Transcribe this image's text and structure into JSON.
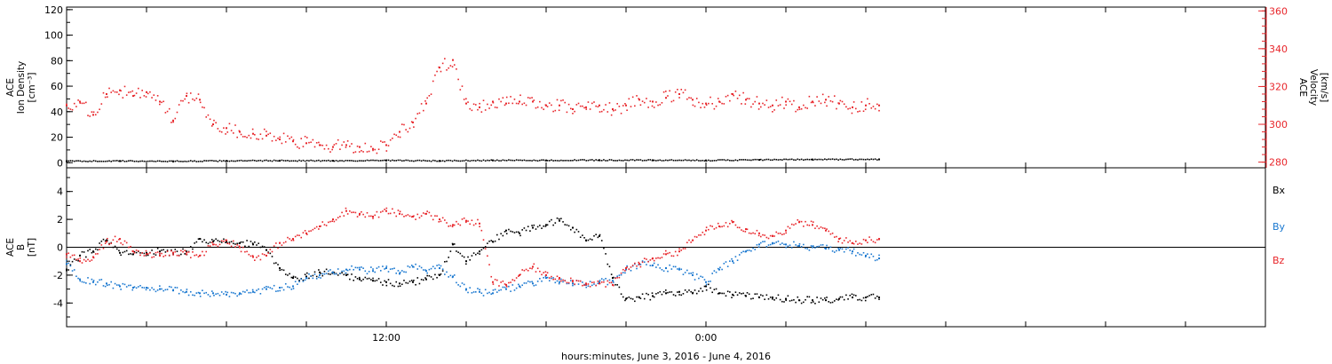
{
  "colors": {
    "black": "#000000",
    "red": "#e8262b",
    "blue": "#1a78d0"
  },
  "footer": {
    "xlabel": "hours:minutes, June  3, 2016 - June  4, 2016"
  },
  "x_axis": {
    "unit": "hours since 2016-06-03 00:00",
    "range": [
      0,
      45
    ],
    "minor_tick_every": 3,
    "tick_labels": [
      {
        "x": 12,
        "label": "12:00"
      },
      {
        "x": 24,
        "label": "0:00"
      }
    ]
  },
  "chart_data": [
    {
      "type": "scatter",
      "panel": "top",
      "ylabel": [
        "ACE",
        "Ion Density",
        "[cm⁻³]"
      ],
      "ylim": [
        -4,
        122
      ],
      "yticks": [
        0,
        20,
        40,
        60,
        80,
        100,
        120
      ],
      "ylabel_right": [
        "ACE",
        "Velocity",
        "[km/s]"
      ],
      "ylim_right": [
        277,
        362
      ],
      "yticks_right": [
        280,
        300,
        320,
        340,
        360
      ],
      "series": [
        {
          "axis": "left",
          "color": "#000000",
          "x": [
            0,
            2,
            4,
            6,
            8,
            10,
            12,
            14,
            16,
            18,
            20,
            22,
            24,
            26,
            28,
            30.5
          ],
          "y": [
            1.2,
            1.3,
            1.1,
            1.4,
            1.6,
            1.5,
            1.7,
            1.4,
            1.8,
            1.8,
            2.0,
            1.9,
            1.8,
            2.2,
            2.5,
            2.6
          ]
        },
        {
          "axis": "right",
          "color": "#e8262b",
          "x": [
            0,
            0.5,
            1,
            1.5,
            2,
            2.5,
            3,
            3.5,
            4,
            4.5,
            5,
            5.5,
            6,
            6.5,
            7,
            7.5,
            8,
            8.5,
            9,
            9.5,
            10,
            10.5,
            11,
            11.5,
            12,
            12.5,
            13,
            13.5,
            14,
            14.5,
            15,
            15.5,
            16,
            16.5,
            17,
            17.5,
            18,
            18.5,
            19,
            19.5,
            20,
            20.5,
            21,
            21.5,
            22,
            22.5,
            23,
            23.5,
            24,
            24.5,
            25,
            25.5,
            26,
            26.5,
            27,
            27.5,
            28,
            28.5,
            29,
            29.5,
            30,
            30.5
          ],
          "y": [
            310,
            312,
            305,
            316,
            318,
            315,
            317,
            312,
            302,
            315,
            313,
            300,
            298,
            296,
            295,
            294,
            292,
            291,
            290,
            289,
            288,
            289,
            288,
            287,
            289,
            296,
            301,
            311,
            330,
            334,
            311,
            309,
            312,
            311,
            312,
            312,
            310,
            310,
            308,
            309,
            310,
            308,
            310,
            313,
            312,
            314,
            316,
            313,
            311,
            312,
            316,
            313,
            311,
            310,
            312,
            309,
            312,
            313,
            311,
            309,
            310,
            310
          ]
        }
      ]
    },
    {
      "type": "scatter",
      "panel": "bottom",
      "ylabel": [
        "ACE",
        "B",
        "[nT]"
      ],
      "ylim": [
        -5.7,
        5.7
      ],
      "yticks": [
        -4,
        -2,
        0,
        2,
        4
      ],
      "hline": 0,
      "series": [
        {
          "name": "Bx",
          "color": "#000000",
          "x": [
            0,
            0.5,
            1,
            1.5,
            2,
            2.5,
            3,
            3.5,
            4,
            4.5,
            5,
            5.5,
            6,
            6.5,
            7,
            7.5,
            8,
            8.5,
            9,
            9.5,
            10,
            10.5,
            11,
            11.5,
            12,
            12.5,
            13,
            13.5,
            14,
            14.5,
            15,
            15.5,
            16,
            16.5,
            17,
            17.5,
            18,
            18.5,
            19,
            19.5,
            20,
            20.5,
            21,
            21.5,
            22,
            22.5,
            23,
            23.5,
            24,
            24.5,
            25,
            25.5,
            26,
            26.5,
            27,
            27.5,
            28,
            28.5,
            29,
            29.5,
            30,
            30.5
          ],
          "y": [
            -1.6,
            -0.6,
            -0.3,
            0.5,
            -0.4,
            -0.5,
            -0.4,
            -0.3,
            -0.4,
            -0.3,
            0.6,
            0.4,
            0.4,
            0.3,
            0.2,
            -0.2,
            -1.5,
            -2.2,
            -2.1,
            -1.8,
            -1.8,
            -2.0,
            -2.3,
            -2.4,
            -2.5,
            -2.6,
            -2.5,
            -2.3,
            -2.0,
            0.2,
            -1.0,
            -0.3,
            0.4,
            1.2,
            1.0,
            1.4,
            1.6,
            1.9,
            1.4,
            0.5,
            0.8,
            -2.2,
            -3.7,
            -3.6,
            -3.5,
            -3.3,
            -3.2,
            -3.3,
            -2.8,
            -3.3,
            -3.4,
            -3.5,
            -3.6,
            -3.6,
            -3.7,
            -3.8,
            -3.8,
            -3.8,
            -3.7,
            -3.6,
            -3.6,
            -3.6
          ]
        },
        {
          "name": "By",
          "color": "#1a78d0",
          "x": [
            0,
            0.5,
            1,
            1.5,
            2,
            2.5,
            3,
            3.5,
            4,
            4.5,
            5,
            5.5,
            6,
            6.5,
            7,
            7.5,
            8,
            8.5,
            9,
            9.5,
            10,
            10.5,
            11,
            11.5,
            12,
            12.5,
            13,
            13.5,
            14,
            14.5,
            15,
            15.5,
            16,
            16.5,
            17,
            17.5,
            18,
            18.5,
            19,
            19.5,
            20,
            20.5,
            21,
            21.5,
            22,
            22.5,
            23,
            23.5,
            24,
            24.5,
            25,
            25.5,
            26,
            26.5,
            27,
            27.5,
            28,
            28.5,
            29,
            29.5,
            30,
            30.5
          ],
          "y": [
            -1.2,
            -2.3,
            -2.5,
            -2.6,
            -2.8,
            -2.9,
            -2.9,
            -3.0,
            -3.1,
            -3.2,
            -3.3,
            -3.3,
            -3.4,
            -3.3,
            -3.2,
            -3.0,
            -2.9,
            -2.8,
            -2.2,
            -2.0,
            -1.8,
            -1.6,
            -1.6,
            -1.7,
            -1.5,
            -1.9,
            -1.4,
            -1.7,
            -1.5,
            -2.1,
            -3.0,
            -3.2,
            -3.3,
            -3.0,
            -2.8,
            -2.6,
            -2.2,
            -2.5,
            -2.6,
            -2.7,
            -2.5,
            -2.4,
            -1.6,
            -1.2,
            -1.3,
            -1.5,
            -1.6,
            -2.0,
            -2.5,
            -1.6,
            -1.0,
            -0.3,
            0.2,
            0.3,
            0.2,
            0.1,
            0.0,
            -0.1,
            -0.2,
            -0.3,
            -0.6,
            -0.8
          ]
        },
        {
          "name": "Bz",
          "color": "#e8262b",
          "x": [
            0,
            0.5,
            1,
            1.5,
            2,
            2.5,
            3,
            3.5,
            4,
            4.5,
            5,
            5.5,
            6,
            6.5,
            7,
            7.5,
            8,
            8.5,
            9,
            9.5,
            10,
            10.5,
            11,
            11.5,
            12,
            12.5,
            13,
            13.5,
            14,
            14.5,
            15,
            15.5,
            16,
            16.5,
            17,
            17.5,
            18,
            18.5,
            19,
            19.5,
            20,
            20.5,
            21,
            21.5,
            22,
            22.5,
            23,
            23.5,
            24,
            24.5,
            25,
            25.5,
            26,
            26.5,
            27,
            27.5,
            28,
            28.5,
            29,
            29.5,
            30,
            30.5
          ],
          "y": [
            -0.5,
            -1.0,
            -0.7,
            0.4,
            0.6,
            -0.3,
            -0.5,
            -0.6,
            -0.4,
            -0.5,
            -0.6,
            0.2,
            0.5,
            0.0,
            -0.7,
            -0.6,
            0.3,
            0.6,
            1.0,
            1.5,
            2.0,
            2.6,
            2.4,
            2.2,
            2.6,
            2.4,
            2.2,
            2.4,
            2.0,
            1.6,
            1.9,
            1.7,
            -2.5,
            -2.7,
            -2.0,
            -1.4,
            -2.0,
            -2.2,
            -2.4,
            -2.6,
            -2.6,
            -2.7,
            -1.5,
            -1.2,
            -0.8,
            -0.5,
            -0.3,
            0.5,
            1.2,
            1.5,
            1.8,
            1.3,
            1.0,
            0.8,
            1.2,
            1.8,
            1.6,
            1.2,
            0.6,
            0.3,
            0.5,
            0.6
          ]
        }
      ]
    }
  ]
}
